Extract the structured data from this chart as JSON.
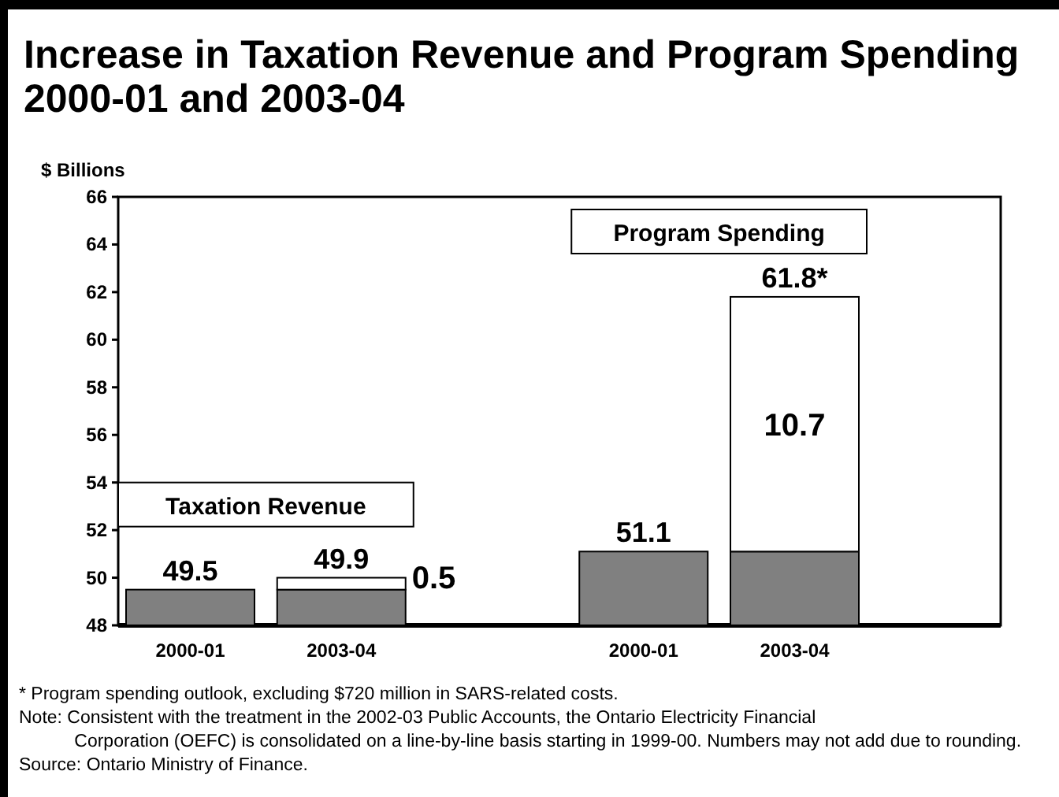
{
  "chart_data": {
    "type": "bar",
    "title": "Increase in Taxation Revenue and Program Spending 2000-01 and 2003-04",
    "ylabel": "$ Billions",
    "categories": [
      "2000-01",
      "2003-04",
      null,
      "2000-01",
      "2003-04"
    ],
    "series": [
      {
        "color": "#808080",
        "values": [
          49.5,
          49.5,
          null,
          51.1,
          51.1
        ]
      },
      {
        "color": "#ffffff",
        "values": [
          null,
          0.5,
          null,
          null,
          10.7
        ],
        "base": [
          null,
          49.5,
          null,
          null,
          51.1
        ],
        "value_labels": [
          null,
          "0.5",
          null,
          null,
          "10.7"
        ]
      }
    ],
    "totals": [
      "49.5",
      "49.9",
      null,
      "51.1",
      "61.8*"
    ],
    "ylim": [
      48,
      66
    ],
    "yticks": [
      48,
      50,
      52,
      54,
      56,
      58,
      60,
      62,
      64,
      66
    ],
    "grid": false,
    "annotations": [
      "Taxation Revenue",
      "Program Spending",
      "*  Program spending outlook, excluding $720 million in SARS-related costs.",
      "Note:    Consistent with the treatment in the 2002-03 Public Accounts, the Ontario Electricity Financial  Corporation (OEFC) is consolidated on a line-by-line basis starting in 1999-00. Numbers may not add due to rounding.",
      "Source: Ontario Ministry of Finance."
    ]
  }
}
